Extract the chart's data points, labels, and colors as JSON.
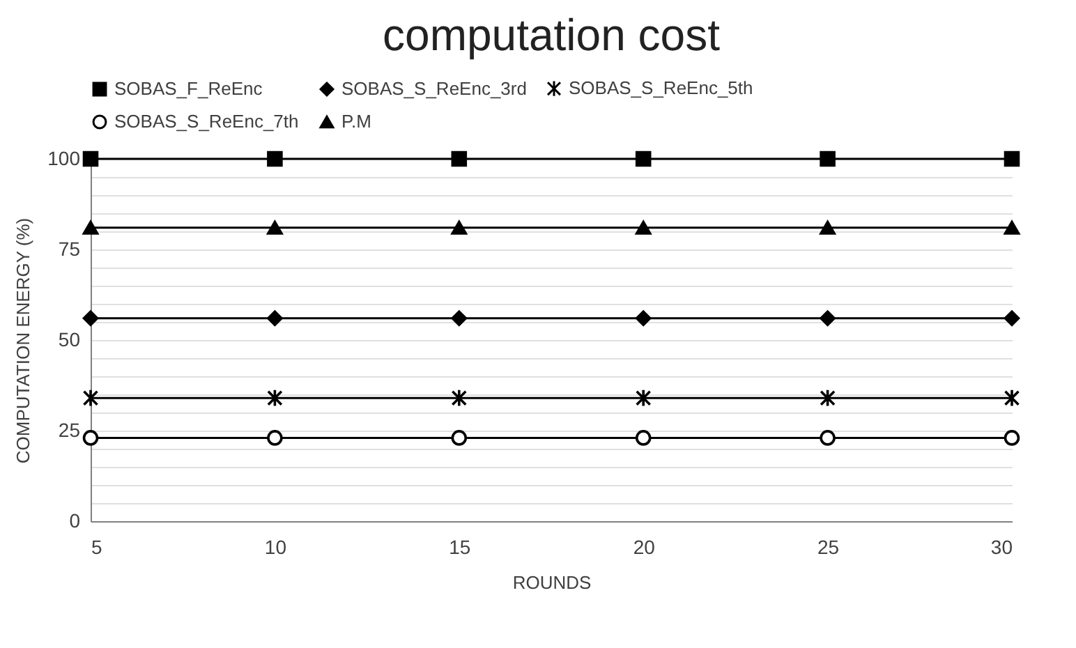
{
  "chart_data": {
    "type": "line",
    "title": "computation cost",
    "xlabel": "ROUNDS",
    "ylabel": "COMPUTATION ENERGY (%)",
    "x": [
      5,
      10,
      15,
      20,
      25,
      30
    ],
    "xlim": [
      5,
      30
    ],
    "xticks": [
      5,
      10,
      15,
      20,
      25,
      30
    ],
    "ylim": [
      0,
      100
    ],
    "yticks": [
      0,
      {
        "value": 5,
        "label": null
      },
      {
        "value": 10,
        "label": null
      },
      {
        "value": 15,
        "label": null
      },
      {
        "value": 20,
        "label": null
      },
      25,
      {
        "value": 30,
        "label": null
      },
      {
        "value": 35,
        "label": null
      },
      {
        "value": 40,
        "label": null
      },
      {
        "value": 45,
        "label": null
      },
      50,
      {
        "value": 55,
        "label": null
      },
      {
        "value": 60,
        "label": null
      },
      {
        "value": 65,
        "label": null
      },
      {
        "value": 70,
        "label": null
      },
      75,
      {
        "value": 80,
        "label": null
      },
      {
        "value": 85,
        "label": null
      },
      {
        "value": 90,
        "label": null
      },
      {
        "value": 95,
        "label": null
      },
      100
    ],
    "grid": "y",
    "legend": "top",
    "series": [
      {
        "name": "SOBAS_F_ReEnc",
        "color": "#000000",
        "marker": "square",
        "values": [
          100,
          100,
          100,
          100,
          100,
          100
        ]
      },
      {
        "name": "SOBAS_S_ReEnc_3rd",
        "color": "#000000",
        "marker": "diamond",
        "values": [
          56,
          56,
          56,
          56,
          56,
          56
        ]
      },
      {
        "name": "SOBAS_S_ReEnc_5th",
        "color": "#000000",
        "marker": "cross",
        "values": [
          34,
          34,
          34,
          34,
          34,
          34
        ]
      },
      {
        "name": "SOBAS_S_ReEnc_7th",
        "color": "#000000",
        "marker": "circle",
        "values": [
          23,
          23,
          23,
          23,
          23,
          23
        ]
      },
      {
        "name": "P.M",
        "color": "#000000",
        "marker": "triangle",
        "values": [
          81,
          81,
          81,
          81,
          81,
          81
        ]
      }
    ]
  }
}
